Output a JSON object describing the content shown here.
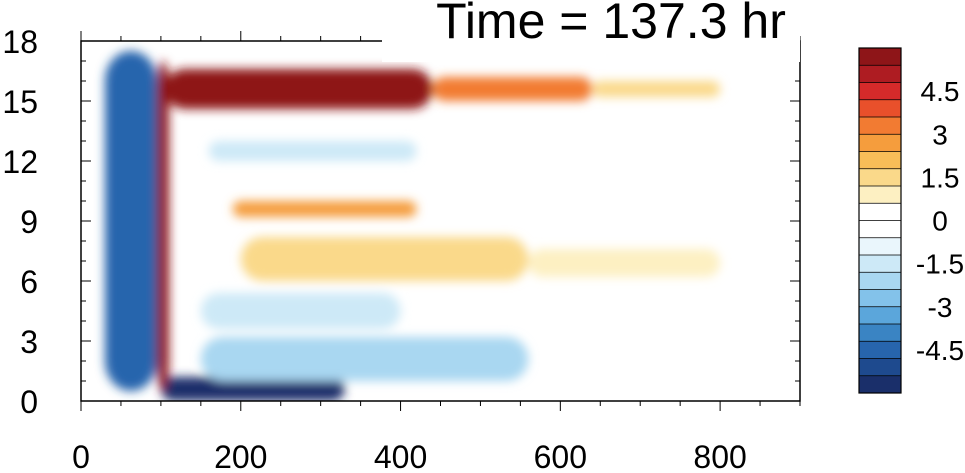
{
  "chart_data": {
    "type": "heatmap",
    "title": "Time = 137.3 hr",
    "xlabel": "",
    "ylabel": "",
    "xlim": [
      0,
      900
    ],
    "ylim": [
      0,
      18
    ],
    "x_ticks": [
      "0",
      "200",
      "400",
      "600",
      "800"
    ],
    "x_tick_values": [
      0,
      200,
      400,
      600,
      800
    ],
    "y_ticks": [
      "0",
      "3",
      "6",
      "9",
      "12",
      "15",
      "18"
    ],
    "y_tick_values": [
      0,
      3,
      6,
      9,
      12,
      15,
      18
    ],
    "colorbar": {
      "range": [
        -6,
        6
      ],
      "step": 0.75,
      "labels": [
        "4.5",
        "3",
        "1.5",
        "0",
        "-1.5",
        "-3",
        "-4.5"
      ],
      "label_values": [
        4.5,
        3,
        1.5,
        0,
        -1.5,
        -3,
        -4.5
      ],
      "colors": [
        "#8e1518",
        "#ae1c22",
        "#d52a2a",
        "#e9502b",
        "#f27b32",
        "#f59d3d",
        "#f8bd58",
        "#fad98a",
        "#fdf0c2",
        "#ffffff",
        "#ffffff",
        "#eaf6fc",
        "#cde9f7",
        "#a9d7f1",
        "#83c2ea",
        "#5ba6db",
        "#3a84c3",
        "#2765ad",
        "#1e4a8e",
        "#1a2f6a"
      ]
    },
    "grid": false,
    "features": [
      {
        "x": [
          105,
          440
        ],
        "y": [
          14.6,
          16.6
        ],
        "value": 6.0
      },
      {
        "x": [
          440,
          640
        ],
        "y": [
          15.0,
          16.2
        ],
        "value": 3.5
      },
      {
        "x": [
          640,
          800
        ],
        "y": [
          15.2,
          16.0
        ],
        "value": 1.8
      },
      {
        "x": [
          100,
          330
        ],
        "y": [
          0.0,
          1.2
        ],
        "value": -6.0
      },
      {
        "x": [
          160,
          420
        ],
        "y": [
          12.0,
          13.0
        ],
        "value": -1.5
      },
      {
        "x": [
          190,
          420
        ],
        "y": [
          9.2,
          10.0
        ],
        "value": 2.6
      },
      {
        "x": [
          200,
          560
        ],
        "y": [
          6.0,
          8.2
        ],
        "value": 1.6
      },
      {
        "x": [
          560,
          800
        ],
        "y": [
          6.2,
          7.6
        ],
        "value": 1.0
      },
      {
        "x": [
          150,
          560
        ],
        "y": [
          1.0,
          3.2
        ],
        "value": -1.8
      },
      {
        "x": [
          150,
          400
        ],
        "y": [
          3.6,
          5.4
        ],
        "value": -1.2
      },
      {
        "x": [
          30,
          95
        ],
        "y": [
          0.5,
          17.5
        ],
        "value": -4.5
      },
      {
        "x": [
          95,
          110
        ],
        "y": [
          0.5,
          17.0
        ],
        "value": 6.0
      }
    ]
  }
}
